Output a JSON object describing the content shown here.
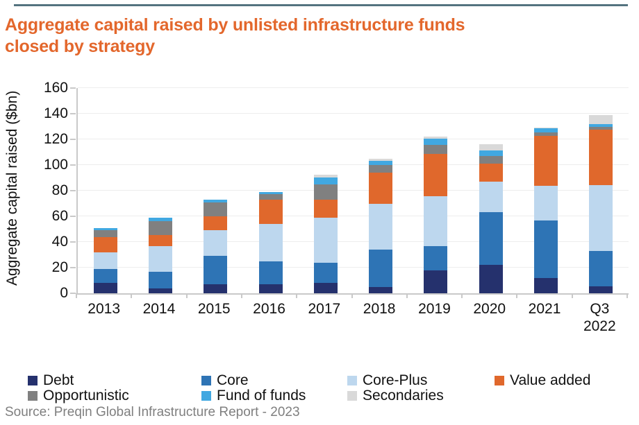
{
  "page": {
    "title_line1": "Aggregate capital raised by unlisted infrastructure funds",
    "title_line2": "closed by strategy",
    "source": "Source: Preqin Global Infrastructure Report - 2023"
  },
  "colors": {
    "title": "#E3672C",
    "top_rule": "#54737F",
    "axis": "#C9C9C9",
    "gridline": "#EDEDED",
    "source_text": "#7F7F7F"
  },
  "chart_data": {
    "type": "bar",
    "stacked": true,
    "title": "Aggregate capital raised by unlisted infrastructure funds closed by strategy",
    "xlabel": "",
    "ylabel": "Aggregate capital raised ($bn)",
    "ylim": [
      0,
      160
    ],
    "ytick_interval": 20,
    "grid": "faint horizontal",
    "legend_position": "bottom",
    "categories": [
      "2013",
      "2014",
      "2015",
      "2016",
      "2017",
      "2018",
      "2019",
      "2020",
      "2021",
      "Q3 2022"
    ],
    "series": [
      {
        "name": "Debt",
        "color": "#25316D",
        "values": [
          8,
          4,
          7,
          7,
          8,
          5,
          18,
          22,
          12,
          5.5
        ]
      },
      {
        "name": "Core",
        "color": "#2E74B5",
        "values": [
          11,
          13,
          22,
          18,
          16,
          29,
          19,
          41,
          45,
          27.5
        ]
      },
      {
        "name": "Core-Plus",
        "color": "#BDD7EE",
        "values": [
          13,
          20,
          20,
          29,
          35,
          36,
          38.5,
          24,
          27,
          51.5
        ]
      },
      {
        "name": "Value added",
        "color": "#E0682C",
        "values": [
          12,
          8.5,
          11,
          19,
          14,
          24,
          33,
          14,
          38.5,
          43
        ]
      },
      {
        "name": "Opportunistic",
        "color": "#808080",
        "values": [
          5,
          11,
          11,
          4.5,
          12,
          6,
          7,
          6,
          3,
          2
        ]
      },
      {
        "name": "Fund of funds",
        "color": "#41A8E1",
        "values": [
          2,
          2.5,
          2,
          1.5,
          5.5,
          3.5,
          5,
          4.5,
          3,
          2.5
        ]
      },
      {
        "name": "Secondaries",
        "color": "#D9D9D9",
        "values": [
          0,
          0,
          0,
          0,
          2,
          1.5,
          1.5,
          4.5,
          0.5,
          7
        ]
      }
    ],
    "totals": [
      51,
      59,
      73,
      79,
      92.5,
      105,
      122,
      116,
      129,
      139
    ]
  }
}
